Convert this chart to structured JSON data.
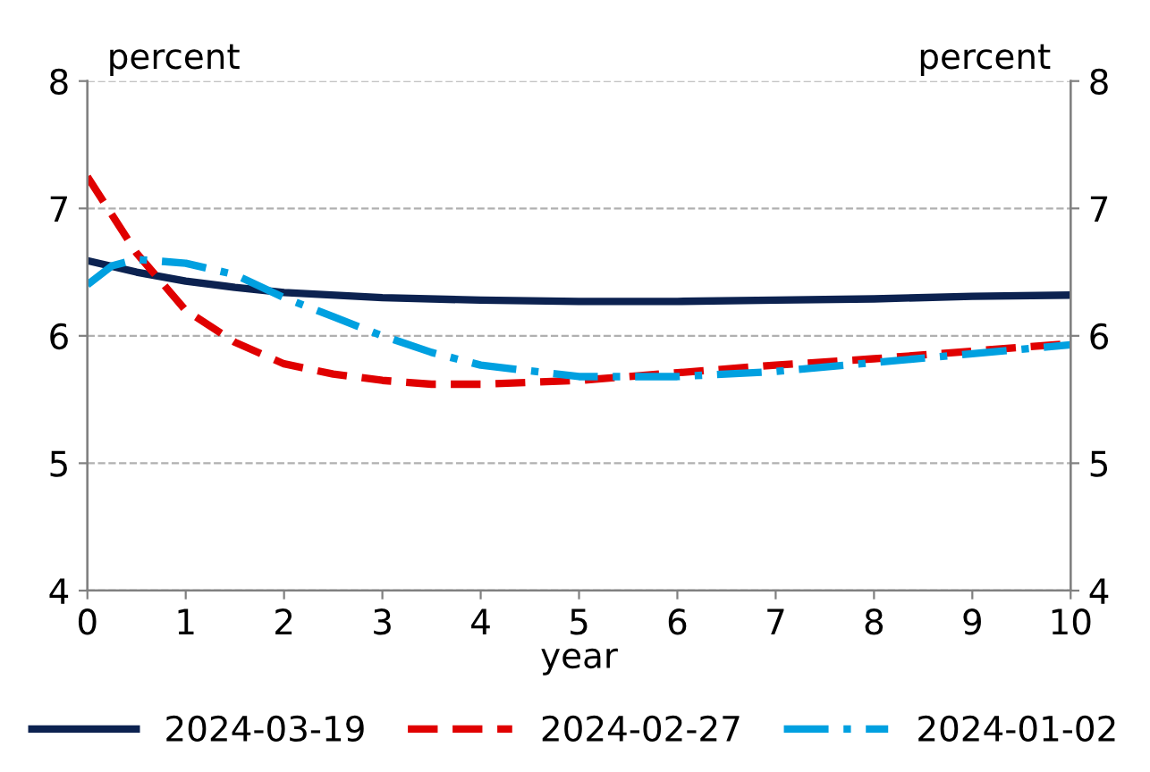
{
  "chart_data": {
    "type": "line",
    "xlabel": "year",
    "ylabel": "percent",
    "y2label": "percent",
    "xlim": [
      0,
      10
    ],
    "xticks": [
      0,
      1,
      2,
      3,
      4,
      5,
      6,
      7,
      8,
      9,
      10
    ],
    "ylim": [
      4,
      8
    ],
    "yticks": [
      4,
      5,
      6,
      7,
      8
    ],
    "y2lim": [
      4,
      8
    ],
    "y2ticks": [
      4,
      5,
      6,
      7,
      8
    ],
    "grid": "y",
    "legend": "bottom",
    "series": [
      {
        "name": "2024-03-19",
        "color": "#0c2250",
        "line_style": "solid",
        "x": [
          0,
          0.5,
          1,
          1.5,
          2,
          3,
          4,
          5,
          6,
          7,
          8,
          9,
          10
        ],
        "values": [
          6.59,
          6.5,
          6.43,
          6.38,
          6.34,
          6.3,
          6.28,
          6.27,
          6.27,
          6.28,
          6.29,
          6.31,
          6.32
        ]
      },
      {
        "name": "2024-02-27",
        "color": "#e00000",
        "line_style": "dashed",
        "x": [
          0,
          0.5,
          1,
          1.5,
          2,
          2.5,
          3,
          3.5,
          4,
          5,
          6,
          7,
          8,
          9,
          10
        ],
        "values": [
          7.25,
          6.65,
          6.2,
          5.95,
          5.78,
          5.7,
          5.65,
          5.62,
          5.62,
          5.65,
          5.71,
          5.77,
          5.82,
          5.88,
          5.94
        ]
      },
      {
        "name": "2024-01-02",
        "color": "#00a0e0",
        "line_style": "dashdot",
        "x": [
          0,
          0.25,
          0.5,
          1,
          1.5,
          2,
          2.5,
          3,
          3.5,
          4,
          5,
          6,
          7,
          8,
          9,
          10
        ],
        "values": [
          6.4,
          6.55,
          6.6,
          6.57,
          6.48,
          6.3,
          6.15,
          6.0,
          5.87,
          5.77,
          5.68,
          5.68,
          5.72,
          5.79,
          5.86,
          5.93
        ]
      }
    ]
  }
}
